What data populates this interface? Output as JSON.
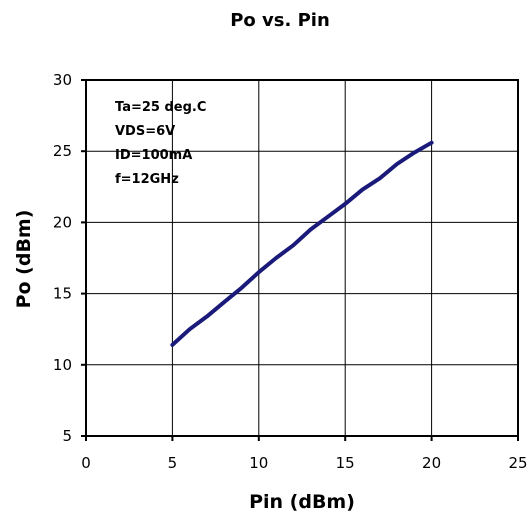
{
  "chart_data": {
    "type": "line",
    "title": "Po vs. Pin",
    "xlabel": "Pin (dBm)",
    "ylabel": "Po (dBm)",
    "xlim": [
      0,
      25
    ],
    "ylim": [
      5,
      30
    ],
    "xticks": [
      0,
      5,
      10,
      15,
      20,
      25
    ],
    "yticks": [
      5,
      10,
      15,
      20,
      25,
      30
    ],
    "grid": true,
    "annotations": [
      "Ta=25 deg.C",
      "VDS=6V",
      "ID=100mA",
      "f=12GHz"
    ],
    "series": [
      {
        "color": "#1a1a7a",
        "x": [
          5,
          6,
          7,
          8,
          9,
          10,
          11,
          12,
          13,
          14,
          15,
          16,
          17,
          18,
          19,
          20
        ],
        "y": [
          11.4,
          12.5,
          13.4,
          14.4,
          15.4,
          16.5,
          17.5,
          18.4,
          19.5,
          20.4,
          21.3,
          22.3,
          23.1,
          24.1,
          24.9,
          25.6
        ]
      }
    ]
  }
}
